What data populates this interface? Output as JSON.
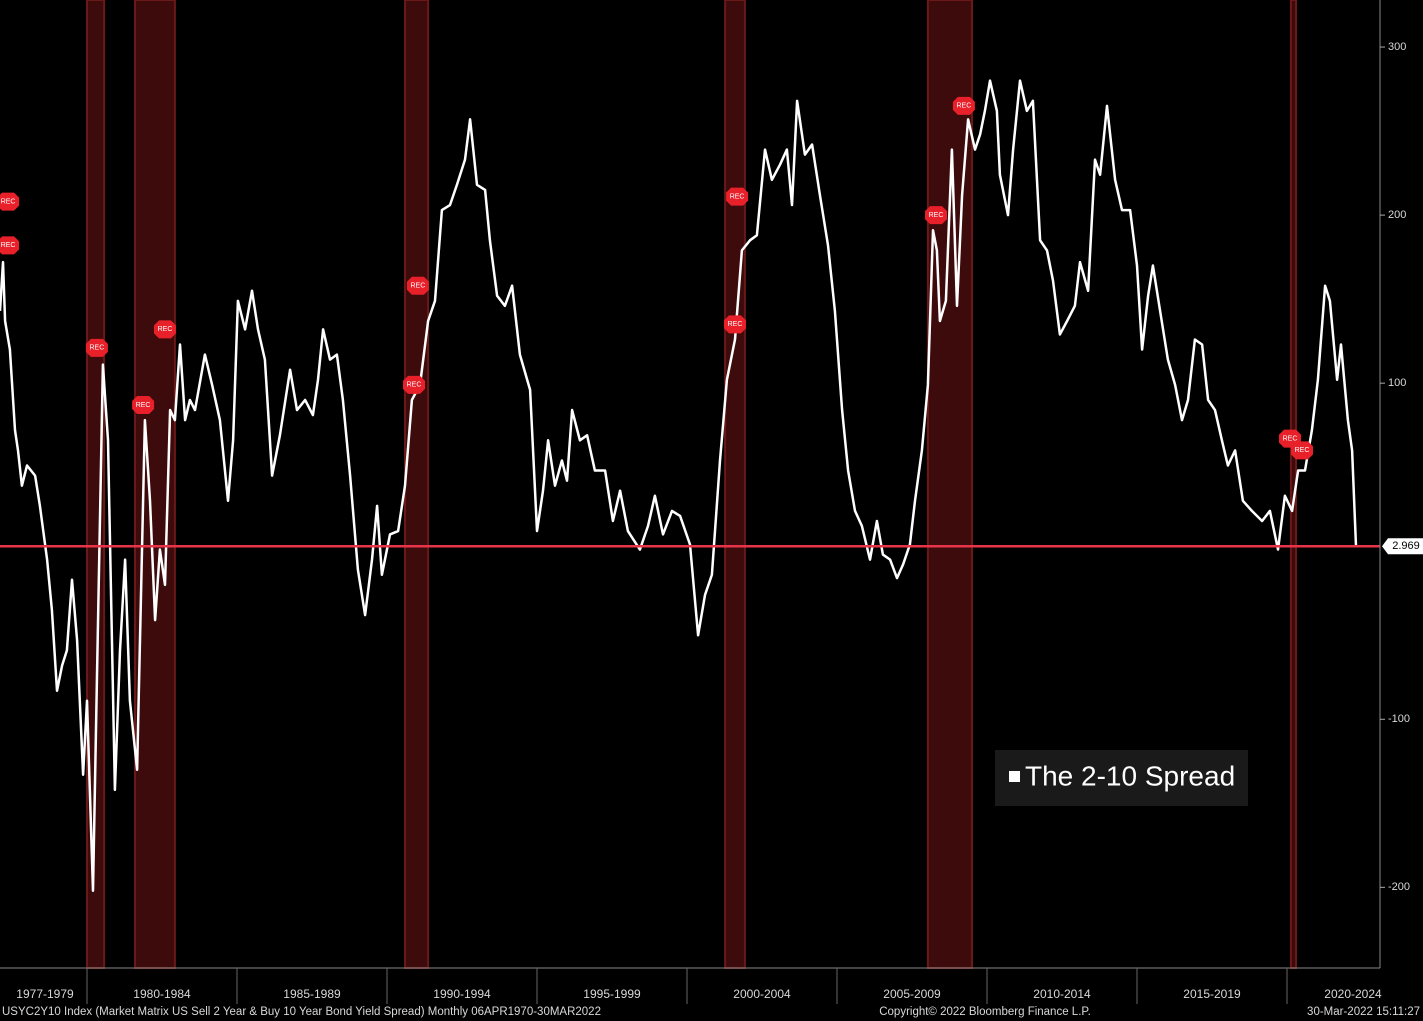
{
  "chart_data": {
    "type": "line",
    "legend_title": "The 2-10 Spread",
    "footer_left": "USYC2Y10 Index (Market Matrix US Sell 2 Year & Buy 10 Year Bond Yield Spread)  Monthly 06APR1970-30MAR2022",
    "footer_center": "Copyright© 2022 Bloomberg Finance L.P.",
    "footer_right": "30-Mar-2022 15:11:27",
    "xlim": [
      1977.1,
      2023.1
    ],
    "ylim": [
      -248,
      328
    ],
    "yticks": [
      300,
      200,
      100,
      -100,
      -200
    ],
    "xticks": [
      1980,
      1985,
      1990,
      1995,
      2000,
      2005,
      2010,
      2015,
      2020
    ],
    "period_labels": [
      {
        "value": 1978.6,
        "label": "1977-1979"
      },
      {
        "value": 1982.5,
        "label": "1980-1984"
      },
      {
        "value": 1987.5,
        "label": "1985-1989"
      },
      {
        "value": 1992.5,
        "label": "1990-1994"
      },
      {
        "value": 1997.5,
        "label": "1995-1999"
      },
      {
        "value": 2002.5,
        "label": "2000-2004"
      },
      {
        "value": 2007.5,
        "label": "2005-2009"
      },
      {
        "value": 2012.5,
        "label": "2010-2014"
      },
      {
        "value": 2017.5,
        "label": "2015-2019"
      },
      {
        "value": 2022.2,
        "label": "2020-2024"
      }
    ],
    "recessions": [
      [
        1980.0,
        1980.57
      ],
      [
        1981.6,
        1982.93
      ],
      [
        1990.6,
        1991.37
      ],
      [
        2001.27,
        2001.93
      ],
      [
        2008.03,
        2009.5
      ],
      [
        2020.13,
        2020.3
      ]
    ],
    "rec_label": "REC",
    "rec_markers": [
      [
        1977.37,
        208
      ],
      [
        1977.37,
        182
      ],
      [
        1980.33,
        121
      ],
      [
        1981.87,
        87
      ],
      [
        1982.6,
        132
      ],
      [
        1991.03,
        158
      ],
      [
        1990.9,
        99
      ],
      [
        2001.67,
        211
      ],
      [
        2001.6,
        135
      ],
      [
        2008.3,
        200
      ],
      [
        2009.23,
        265
      ],
      [
        2020.1,
        67
      ],
      [
        2020.5,
        60
      ]
    ],
    "x": [
      1977.1,
      1977.2,
      1977.27,
      1977.43,
      1977.6,
      1977.7,
      1977.83,
      1978.0,
      1978.27,
      1978.43,
      1978.67,
      1978.83,
      1979.0,
      1979.17,
      1979.33,
      1979.5,
      1979.67,
      1979.87,
      1980.0,
      1980.2,
      1980.33,
      1980.53,
      1980.7,
      1980.93,
      1981.1,
      1981.27,
      1981.43,
      1981.67,
      1981.93,
      1982.1,
      1982.27,
      1982.43,
      1982.6,
      1982.77,
      1982.93,
      1983.1,
      1983.27,
      1983.43,
      1983.6,
      1983.93,
      1984.17,
      1984.43,
      1984.7,
      1984.87,
      1985.03,
      1985.27,
      1985.5,
      1985.7,
      1985.93,
      1986.17,
      1986.43,
      1986.77,
      1987.0,
      1987.27,
      1987.53,
      1987.7,
      1987.87,
      1988.1,
      1988.33,
      1988.53,
      1988.77,
      1989.03,
      1989.27,
      1989.5,
      1989.67,
      1989.83,
      1990.1,
      1990.37,
      1990.6,
      1990.83,
      1991.1,
      1991.37,
      1991.6,
      1991.83,
      1992.1,
      1992.33,
      1992.6,
      1992.77,
      1993.0,
      1993.27,
      1993.43,
      1993.67,
      1993.93,
      1994.17,
      1994.43,
      1994.77,
      1995.0,
      1995.2,
      1995.37,
      1995.6,
      1995.83,
      1996.0,
      1996.17,
      1996.43,
      1996.67,
      1996.93,
      1997.27,
      1997.53,
      1997.77,
      1998.03,
      1998.43,
      1998.7,
      1998.93,
      1999.2,
      1999.5,
      1999.77,
      2000.1,
      2000.37,
      2000.6,
      2000.83,
      2001.1,
      2001.33,
      2001.6,
      2001.83,
      2002.1,
      2002.33,
      2002.6,
      2002.83,
      2003.1,
      2003.33,
      2003.5,
      2003.67,
      2003.93,
      2004.17,
      2004.43,
      2004.7,
      2004.93,
      2005.17,
      2005.37,
      2005.6,
      2005.83,
      2006.1,
      2006.33,
      2006.53,
      2006.77,
      2007.0,
      2007.2,
      2007.43,
      2007.6,
      2007.83,
      2008.03,
      2008.2,
      2008.33,
      2008.43,
      2008.63,
      2008.83,
      2009.0,
      2009.17,
      2009.37,
      2009.6,
      2009.77,
      2009.93,
      2010.1,
      2010.33,
      2010.43,
      2010.7,
      2010.87,
      2011.1,
      2011.33,
      2011.53,
      2011.77,
      2012.0,
      2012.2,
      2012.43,
      2012.67,
      2012.93,
      2013.1,
      2013.37,
      2013.6,
      2013.77,
      2014.0,
      2014.27,
      2014.5,
      2014.77,
      2015.0,
      2015.17,
      2015.37,
      2015.53,
      2015.77,
      2016.03,
      2016.27,
      2016.5,
      2016.7,
      2016.93,
      2017.17,
      2017.37,
      2017.6,
      2017.83,
      2018.03,
      2018.27,
      2018.53,
      2018.83,
      2019.17,
      2019.43,
      2019.7,
      2019.93,
      2020.17,
      2020.37,
      2020.6,
      2020.83,
      2021.03,
      2021.27,
      2021.43,
      2021.67,
      2021.8,
      2022.03,
      2022.17,
      2022.3
    ],
    "series": [
      {
        "name": "The 2-10 Spread",
        "color": "#ffffff",
        "values": [
          143,
          172,
          137,
          120,
          72,
          60,
          39,
          51,
          45,
          27,
          -5,
          -35,
          -83,
          -68,
          -59,
          -17,
          -53,
          -133,
          -89,
          -202,
          -77,
          111,
          66,
          -142,
          -59,
          -5,
          -89,
          -130,
          78,
          30,
          -41,
          1,
          -20,
          84,
          78,
          123,
          78,
          90,
          84,
          117,
          99,
          78,
          30,
          66,
          149,
          132,
          155,
          132,
          114,
          45,
          69,
          108,
          84,
          90,
          81,
          102,
          132,
          114,
          117,
          90,
          45,
          -11,
          -38,
          -5,
          27,
          -14,
          10,
          12,
          39,
          90,
          99,
          137,
          149,
          203,
          206,
          218,
          233,
          257,
          218,
          215,
          185,
          152,
          146,
          158,
          117,
          96,
          12,
          36,
          66,
          39,
          54,
          42,
          84,
          66,
          69,
          48,
          48,
          18,
          36,
          12,
          1,
          15,
          33,
          10,
          24,
          21,
          4,
          -50,
          -26,
          -14,
          54,
          102,
          126,
          179,
          185,
          188,
          239,
          221,
          230,
          239,
          206,
          268,
          236,
          242,
          212,
          182,
          143,
          84,
          48,
          24,
          15,
          -5,
          18,
          -2,
          -5,
          -16,
          -8,
          4,
          30,
          60,
          99,
          191,
          179,
          137,
          149,
          239,
          146,
          212,
          257,
          239,
          248,
          262,
          280,
          262,
          224,
          200,
          239,
          280,
          262,
          268,
          185,
          179,
          161,
          129,
          137,
          146,
          172,
          155,
          233,
          224,
          265,
          221,
          203,
          203,
          170,
          120,
          152,
          170,
          143,
          114,
          99,
          78,
          90,
          126,
          123,
          90,
          84,
          66,
          51,
          60,
          30,
          24,
          18,
          24,
          1,
          33,
          24,
          48,
          48,
          72,
          102,
          158,
          149,
          102,
          123,
          78,
          60,
          2.969
        ]
      }
    ]
  }
}
